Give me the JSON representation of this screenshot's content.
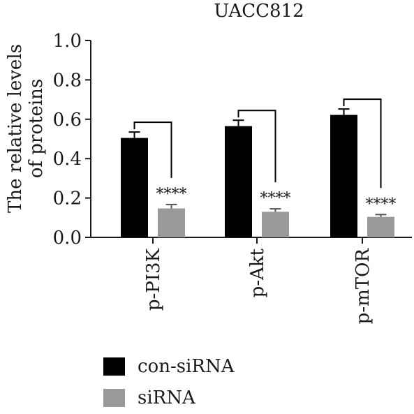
{
  "chart_data": {
    "type": "bar",
    "title": "UACC812",
    "ylabel": "The relative levels of proteins",
    "ylabel_lines": [
      "The relative levels",
      "of proteins"
    ],
    "xlabel": "",
    "ylim": [
      0,
      1.0
    ],
    "yticks": [
      "0.0",
      "0.2",
      "0.4",
      "0.6",
      "0.8",
      "1.0"
    ],
    "categories": [
      "p-PI3K",
      "p-Akt",
      "p-mTOR"
    ],
    "series": [
      {
        "name": "con-siRNA",
        "color": "#000000",
        "values": [
          0.505,
          0.565,
          0.622
        ],
        "errors": [
          0.03,
          0.03,
          0.03
        ]
      },
      {
        "name": "siRNA",
        "color": "#999999",
        "values": [
          0.147,
          0.13,
          0.104
        ],
        "errors": [
          0.02,
          0.015,
          0.012
        ]
      }
    ],
    "significance": [
      "****",
      "****",
      "****"
    ],
    "legend_position": "bottom-left"
  }
}
